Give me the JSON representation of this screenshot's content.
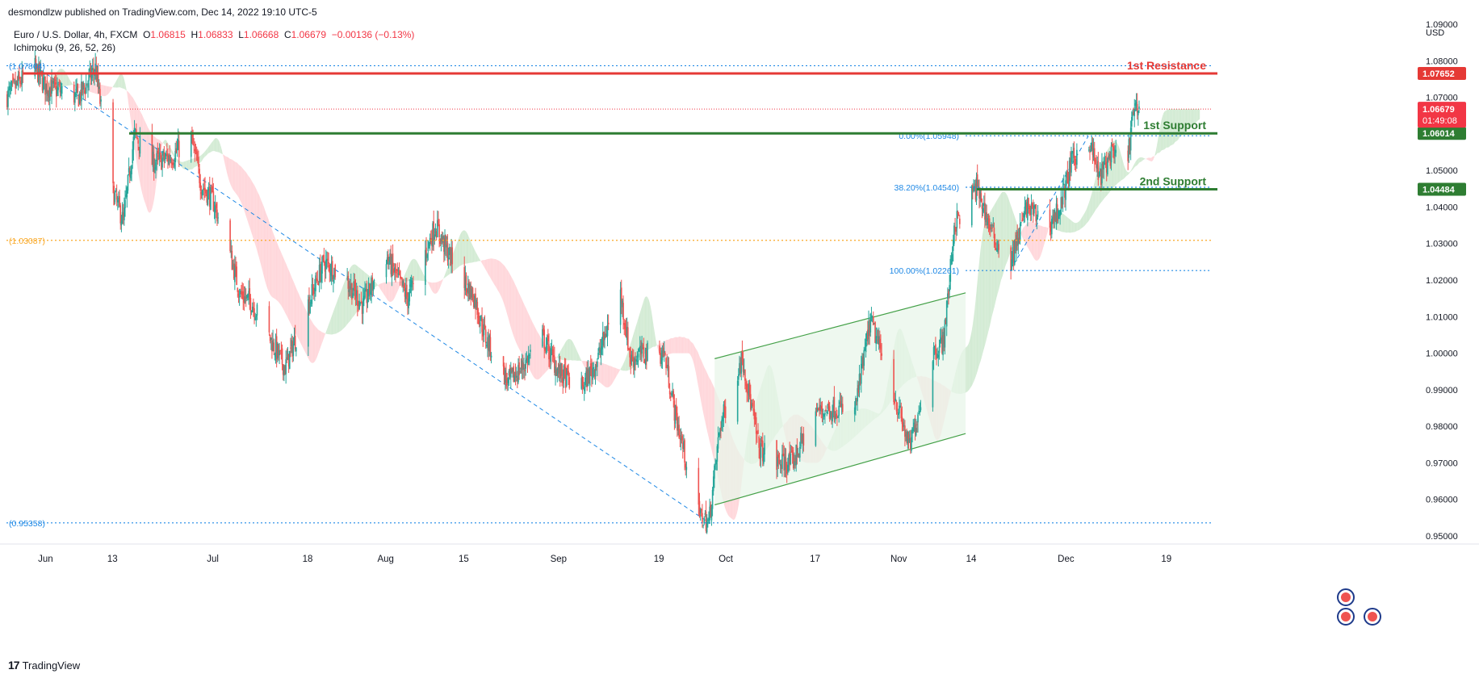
{
  "header": {
    "publisher": "desmondlzw published on TradingView.com, Dec 14, 2022 19:10 UTC-5",
    "symbol": "Euro / U.S. Dollar, 4h, FXCM",
    "ohlc": {
      "o_label": "O",
      "o": "1.06815",
      "h_label": "H",
      "h": "1.06833",
      "l_label": "L",
      "l": "1.06668",
      "c_label": "C",
      "c": "1.06679",
      "change": "−0.00136 (−0.13%)"
    },
    "indicator": "Ichimoku (9, 26, 52, 26)"
  },
  "footer": {
    "logo_glyph": "17",
    "brand": "TradingView"
  },
  "colors": {
    "up": "#26a69a",
    "down": "#ef5350",
    "resistance": "#e53935",
    "support": "#2e7d32",
    "fib": "#1e88e5",
    "orange": "#f9a825",
    "cloud_green": "#c8e6c9",
    "cloud_red": "#ffcdd2",
    "channel": "#43a047"
  },
  "chart_data": {
    "type": "candlestick",
    "title": "Euro / U.S. Dollar, 4h, FXCM",
    "currency": "USD",
    "ylim": [
      0.95,
      1.09
    ],
    "y_ticks": [
      "1.09000",
      "1.08000",
      "1.07000",
      "1.05000",
      "1.04000",
      "1.03000",
      "1.02000",
      "1.01000",
      "1.00000",
      "0.99000",
      "0.98000",
      "0.97000",
      "0.96000",
      "0.95000"
    ],
    "x_ticks": [
      "Jun",
      "13",
      "Jul",
      "18",
      "Aug",
      "15",
      "Sep",
      "19",
      "Oct",
      "17",
      "Nov",
      "14",
      "Dec",
      "19"
    ],
    "x_tick_dates": [
      "2022-06-01",
      "2022-06-13",
      "2022-07-01",
      "2022-07-18",
      "2022-08-01",
      "2022-08-15",
      "2022-09-01",
      "2022-09-19",
      "2022-10-01",
      "2022-10-17",
      "2022-11-01",
      "2022-11-14",
      "2022-12-01",
      "2022-12-19"
    ],
    "x_range": [
      "2022-05-25",
      "2022-12-27"
    ],
    "price_path": [
      [
        "2022-05-25",
        1.07
      ],
      [
        "2022-05-30",
        1.0786
      ],
      [
        "2022-06-01",
        1.073
      ],
      [
        "2022-06-07",
        1.07
      ],
      [
        "2022-06-10",
        1.078
      ],
      [
        "2022-06-13",
        1.045
      ],
      [
        "2022-06-15",
        1.036
      ],
      [
        "2022-06-17",
        1.06
      ],
      [
        "2022-06-20",
        1.052
      ],
      [
        "2022-06-24",
        1.054
      ],
      [
        "2022-06-27",
        1.06
      ],
      [
        "2022-06-29",
        1.046
      ],
      [
        "2022-07-01",
        1.042
      ],
      [
        "2022-07-04",
        1.028
      ],
      [
        "2022-07-06",
        1.016
      ],
      [
        "2022-07-08",
        1.014
      ],
      [
        "2022-07-12",
        1.002
      ],
      [
        "2022-07-14",
        0.996
      ],
      [
        "2022-07-18",
        1.013
      ],
      [
        "2022-07-21",
        1.025
      ],
      [
        "2022-07-25",
        1.02
      ],
      [
        "2022-07-28",
        1.013
      ],
      [
        "2022-08-01",
        1.027
      ],
      [
        "2022-08-05",
        1.015
      ],
      [
        "2022-08-10",
        1.035
      ],
      [
        "2022-08-12",
        1.028
      ],
      [
        "2022-08-15",
        1.02
      ],
      [
        "2022-08-17",
        1.015
      ],
      [
        "2022-08-19",
        1.004
      ],
      [
        "2022-08-23",
        0.992
      ],
      [
        "2022-08-26",
        0.997
      ],
      [
        "2022-08-29",
        1.005
      ],
      [
        "2022-09-01",
        0.995
      ],
      [
        "2022-09-05",
        0.99
      ],
      [
        "2022-09-08",
        0.998
      ],
      [
        "2022-09-12",
        1.018
      ],
      [
        "2022-09-14",
        0.998
      ],
      [
        "2022-09-16",
        1.0
      ],
      [
        "2022-09-20",
        1.0
      ],
      [
        "2022-09-22",
        0.983
      ],
      [
        "2022-09-24",
        0.97
      ],
      [
        "2022-09-26",
        0.956
      ],
      [
        "2022-09-28",
        0.9536
      ],
      [
        "2022-09-30",
        0.98
      ],
      [
        "2022-10-04",
        0.999
      ],
      [
        "2022-10-07",
        0.974
      ],
      [
        "2022-10-10",
        0.97
      ],
      [
        "2022-10-13",
        0.97
      ],
      [
        "2022-10-17",
        0.984
      ],
      [
        "2022-10-21",
        0.985
      ],
      [
        "2022-10-24",
        0.983
      ],
      [
        "2022-10-27",
        1.009
      ],
      [
        "2022-10-31",
        0.99
      ],
      [
        "2022-11-03",
        0.974
      ],
      [
        "2022-11-07",
        1.0
      ],
      [
        "2022-11-09",
        1.003
      ],
      [
        "2022-11-10",
        1.017
      ],
      [
        "2022-11-11",
        1.035
      ],
      [
        "2022-11-15",
        1.0454
      ],
      [
        "2022-11-18",
        1.032
      ],
      [
        "2022-11-21",
        1.024
      ],
      [
        "2022-11-24",
        1.04
      ],
      [
        "2022-11-28",
        1.035
      ],
      [
        "2022-11-30",
        1.04
      ],
      [
        "2022-12-02",
        1.052
      ],
      [
        "2022-12-05",
        1.0594
      ],
      [
        "2022-12-07",
        1.048
      ],
      [
        "2022-12-09",
        1.054
      ],
      [
        "2022-12-12",
        1.052
      ],
      [
        "2022-12-13",
        1.065
      ],
      [
        "2022-12-14",
        1.0668
      ]
    ],
    "last_price": {
      "value": "1.06679",
      "countdown": "01:49:08"
    },
    "levels": [
      {
        "name": "1st Resistance",
        "value": 1.07652,
        "label": "1.07652",
        "kind": "resistance",
        "start": "2022-05-28"
      },
      {
        "name": "1st Support",
        "value": 1.06014,
        "label": "1.06014",
        "kind": "support",
        "start": "2022-06-16"
      },
      {
        "name": "2nd Support",
        "value": 1.04484,
        "label": "1.04484",
        "kind": "support",
        "start": "2022-11-15"
      }
    ],
    "dotted_levels": [
      {
        "label": "(1.07864)",
        "value": 1.07864,
        "color": "fib"
      },
      {
        "label": "(1.03087)",
        "value": 1.03087,
        "color": "orange"
      },
      {
        "label": "(0.95358)",
        "value": 0.95358,
        "color": "fib"
      }
    ],
    "fib_levels": [
      {
        "label": "0.00%(1.05948)",
        "value": 1.05948
      },
      {
        "label": "38.20%(1.04540)",
        "value": 1.0454
      },
      {
        "label": "100.00%(1.02261)",
        "value": 1.02261
      }
    ],
    "trendlines": [
      {
        "from": [
          "2022-05-30",
          1.0786
        ],
        "to": [
          "2022-09-28",
          0.9536
        ]
      },
      {
        "from": [
          "2022-11-21",
          1.0226
        ],
        "to": [
          "2022-12-05",
          1.0594
        ]
      }
    ],
    "channel": {
      "upper": [
        [
          "2022-09-29",
          0.9985
        ],
        [
          "2022-11-13",
          1.0165
        ]
      ],
      "lower": [
        [
          "2022-09-29",
          0.9585
        ],
        [
          "2022-11-13",
          0.978
        ]
      ]
    }
  }
}
